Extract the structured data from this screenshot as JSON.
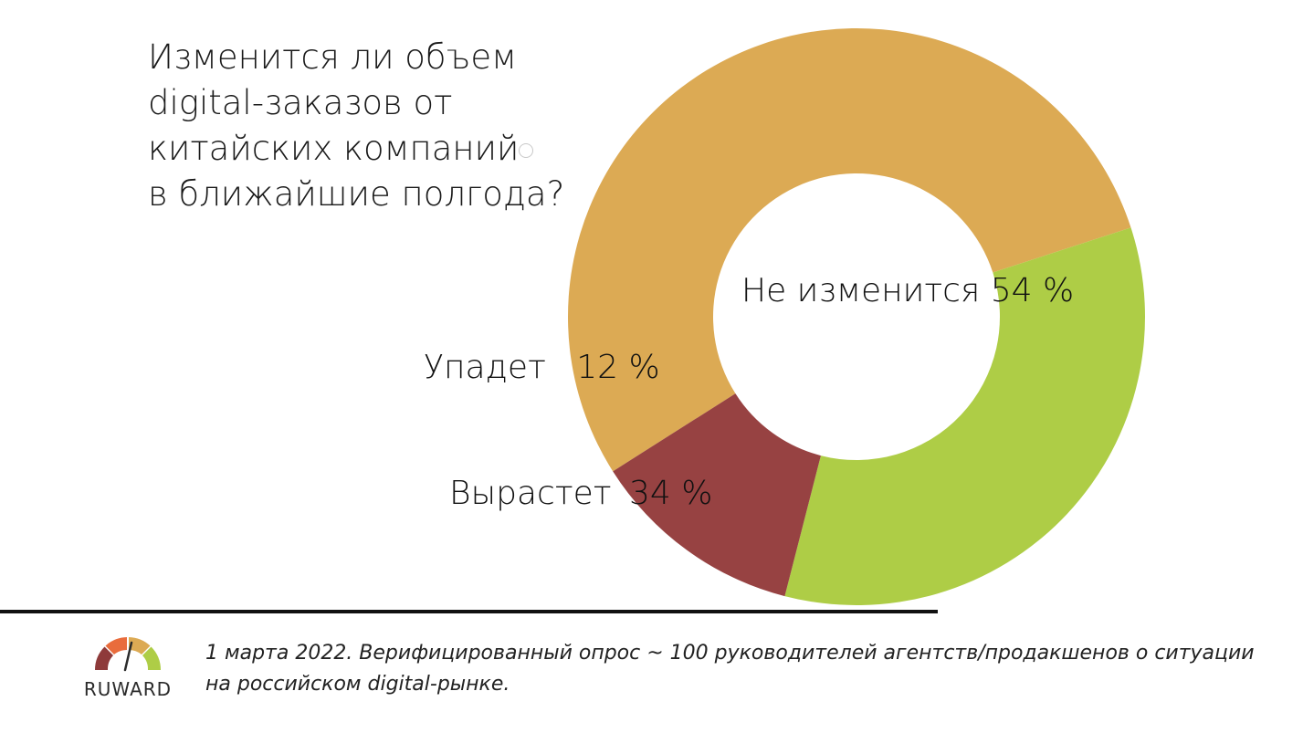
{
  "title_lines": [
    "Изменится ли объем",
    "digital-заказов от",
    "китайских компаний",
    "в ближайшие полгода?"
  ],
  "chart_data": {
    "type": "pie",
    "donut": true,
    "title": "Изменится ли объем digital-заказов от китайских компаний в ближайшие полгода?",
    "slices": [
      {
        "label": "Не изменится",
        "value": 54,
        "value_text": "54 %",
        "color": "#DCAA54"
      },
      {
        "label": "Вырастет",
        "value": 34,
        "value_text": "34 %",
        "color": "#AECD46"
      },
      {
        "label": "Упадет",
        "value": 12,
        "value_text": "12 %",
        "color": "#974242"
      }
    ]
  },
  "labels": {
    "unchanged": {
      "name": "Не изменится",
      "pct": "54 %"
    },
    "grow": {
      "name": "Вырастет",
      "pct": "34 %"
    },
    "fall": {
      "name": "Упадет",
      "pct": "12 %"
    }
  },
  "footer": {
    "logo_text": "RUWARD",
    "note": "1 марта 2022. Верифицированный опрос ~ 100 руководителей агентств/продакшенов о ситуации на российском digital-рынке."
  },
  "colors": {
    "logo_red": "#8E3A3A",
    "logo_orange": "#E96C3C",
    "logo_yellow": "#DCAA54",
    "logo_green": "#AECD46"
  }
}
